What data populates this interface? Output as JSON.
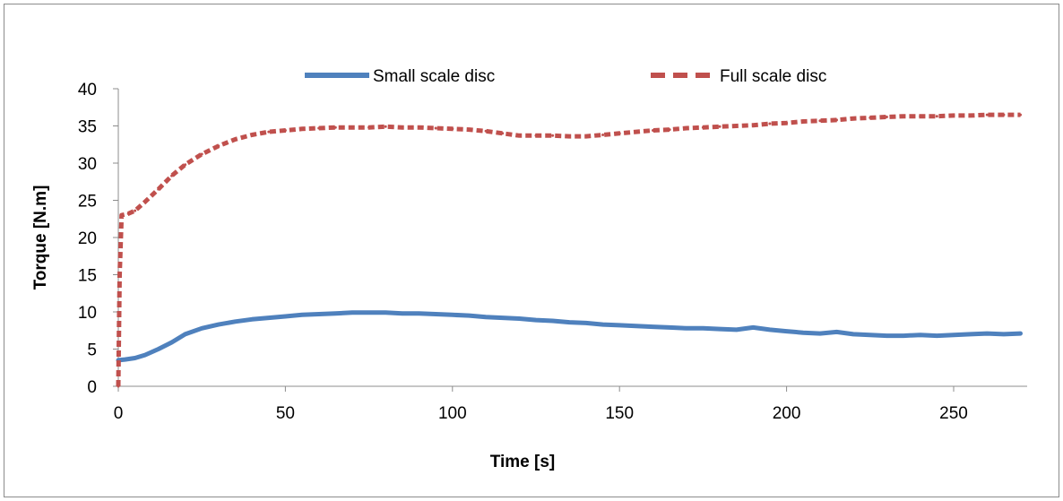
{
  "chart_data": {
    "type": "line",
    "title": "",
    "xlabel": "Time [s]",
    "ylabel": "Torque [N.m]",
    "xlim": [
      0,
      272
    ],
    "ylim": [
      0,
      40
    ],
    "x_ticks": [
      0,
      50,
      100,
      150,
      200,
      250
    ],
    "y_ticks": [
      0,
      5,
      10,
      15,
      20,
      25,
      30,
      35,
      40
    ],
    "grid": false,
    "legend_position": "top",
    "series": [
      {
        "name": "Small scale disc",
        "color": "#4f81bd",
        "style": "solid",
        "x": [
          0,
          2,
          5,
          8,
          12,
          16,
          20,
          25,
          30,
          35,
          40,
          45,
          50,
          55,
          60,
          65,
          70,
          75,
          80,
          85,
          90,
          95,
          100,
          105,
          110,
          115,
          120,
          125,
          130,
          135,
          140,
          145,
          150,
          155,
          160,
          165,
          170,
          175,
          180,
          185,
          190,
          195,
          200,
          205,
          210,
          215,
          220,
          225,
          230,
          235,
          240,
          245,
          250,
          255,
          260,
          265,
          270
        ],
        "values": [
          3.5,
          3.6,
          3.8,
          4.2,
          5.0,
          5.9,
          7.0,
          7.8,
          8.3,
          8.7,
          9.0,
          9.2,
          9.4,
          9.6,
          9.7,
          9.8,
          9.9,
          9.9,
          9.9,
          9.8,
          9.8,
          9.7,
          9.6,
          9.5,
          9.3,
          9.2,
          9.1,
          8.9,
          8.8,
          8.6,
          8.5,
          8.3,
          8.2,
          8.1,
          8.0,
          7.9,
          7.8,
          7.8,
          7.7,
          7.6,
          7.9,
          7.6,
          7.4,
          7.2,
          7.1,
          7.3,
          7.0,
          6.9,
          6.8,
          6.8,
          6.9,
          6.8,
          6.9,
          7.0,
          7.1,
          7.0,
          7.1
        ]
      },
      {
        "name": "Full scale disc",
        "color": "#c0504d",
        "style": "dashed",
        "x": [
          0,
          0.4,
          1,
          3,
          5,
          8,
          12,
          16,
          20,
          25,
          30,
          35,
          40,
          45,
          50,
          55,
          60,
          65,
          70,
          75,
          80,
          85,
          90,
          95,
          100,
          105,
          110,
          115,
          120,
          125,
          130,
          135,
          140,
          145,
          150,
          155,
          160,
          165,
          170,
          175,
          180,
          185,
          190,
          195,
          200,
          205,
          210,
          215,
          220,
          225,
          230,
          235,
          240,
          245,
          250,
          255,
          260,
          265,
          270
        ],
        "values": [
          0,
          15,
          23,
          23.2,
          23.6,
          24.8,
          26.5,
          28.3,
          29.8,
          31.2,
          32.3,
          33.2,
          33.8,
          34.2,
          34.4,
          34.6,
          34.7,
          34.8,
          34.8,
          34.8,
          34.9,
          34.8,
          34.8,
          34.7,
          34.6,
          34.5,
          34.3,
          34.0,
          33.7,
          33.7,
          33.7,
          33.6,
          33.6,
          33.8,
          34.0,
          34.2,
          34.4,
          34.5,
          34.7,
          34.8,
          34.9,
          35.0,
          35.1,
          35.3,
          35.4,
          35.6,
          35.7,
          35.8,
          36.0,
          36.1,
          36.2,
          36.3,
          36.3,
          36.3,
          36.4,
          36.4,
          36.5,
          36.5,
          36.5
        ]
      }
    ]
  }
}
